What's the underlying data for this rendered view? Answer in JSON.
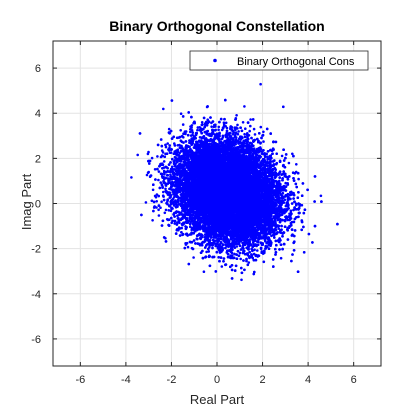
{
  "chart_data": {
    "type": "scatter",
    "title": "Binary Orthogonal Constellation",
    "xlabel": "Real Part",
    "ylabel": "Imag Part",
    "xlim": [
      -7.2,
      7.2
    ],
    "ylim": [
      -7.2,
      7.2
    ],
    "xticks": [
      -6,
      -4,
      -2,
      0,
      2,
      4,
      6
    ],
    "yticks": [
      -6,
      -4,
      -2,
      0,
      2,
      4,
      6
    ],
    "grid": true,
    "legend": {
      "placement": "top-right",
      "entries": [
        "Binary Orthogonal Cons"
      ]
    },
    "series": [
      {
        "name": "Binary Orthogonal Cons",
        "color": "#0000ff",
        "marker": "dot",
        "clusters": [
          {
            "center": [
              0,
              1
            ],
            "std": [
              1.0,
              1.0
            ]
          },
          {
            "center": [
              1,
              0
            ],
            "std": [
              1.0,
              1.0
            ]
          }
        ],
        "approx_point_count": 20000
      }
    ]
  }
}
